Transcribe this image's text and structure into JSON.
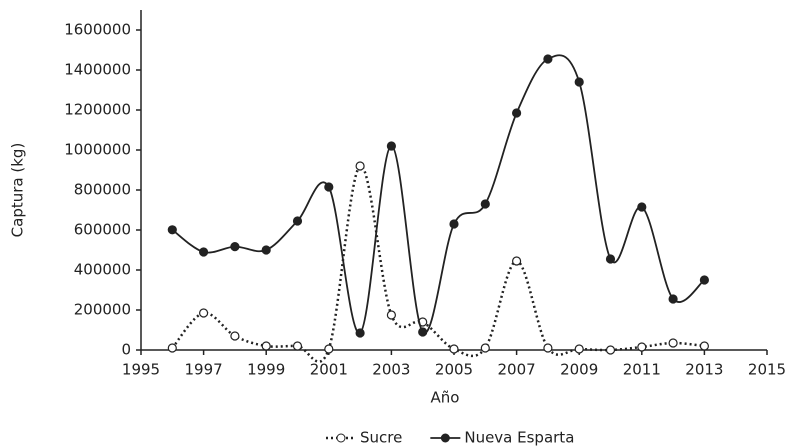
{
  "chart_data": {
    "type": "line",
    "x_label": "Año",
    "y_label": "Captura (kg)",
    "x": [
      1996,
      1997,
      1998,
      1999,
      2000,
      2001,
      2002,
      2003,
      2004,
      2005,
      2006,
      2007,
      2008,
      2009,
      2010,
      2011,
      2012,
      2013
    ],
    "series": [
      {
        "name": "Sucre",
        "color": "#222222",
        "dashed": true,
        "marker": "open",
        "values": [
          10000,
          185000,
          70000,
          20000,
          20000,
          5000,
          920000,
          175000,
          140000,
          5000,
          10000,
          445000,
          10000,
          5000,
          0,
          15000,
          35000,
          20000
        ]
      },
      {
        "name": "Nueva Esparta",
        "color": "#222222",
        "dashed": false,
        "marker": "filled",
        "values": [
          601000,
          490000,
          517000,
          500000,
          645000,
          815000,
          85000,
          1020000,
          90000,
          630000,
          730000,
          1185000,
          1455000,
          1340000,
          455000,
          715000,
          255000,
          350000
        ]
      }
    ],
    "xlim": [
      1995,
      2015
    ],
    "xticks": [
      1995,
      1997,
      1999,
      2001,
      2003,
      2005,
      2007,
      2009,
      2011,
      2013,
      2015
    ],
    "ylim": [
      0,
      1600000
    ],
    "yticks": [
      0,
      200000,
      400000,
      600000,
      800000,
      1000000,
      1200000,
      1400000,
      1600000
    ],
    "grid": false,
    "legend": "bottom"
  }
}
